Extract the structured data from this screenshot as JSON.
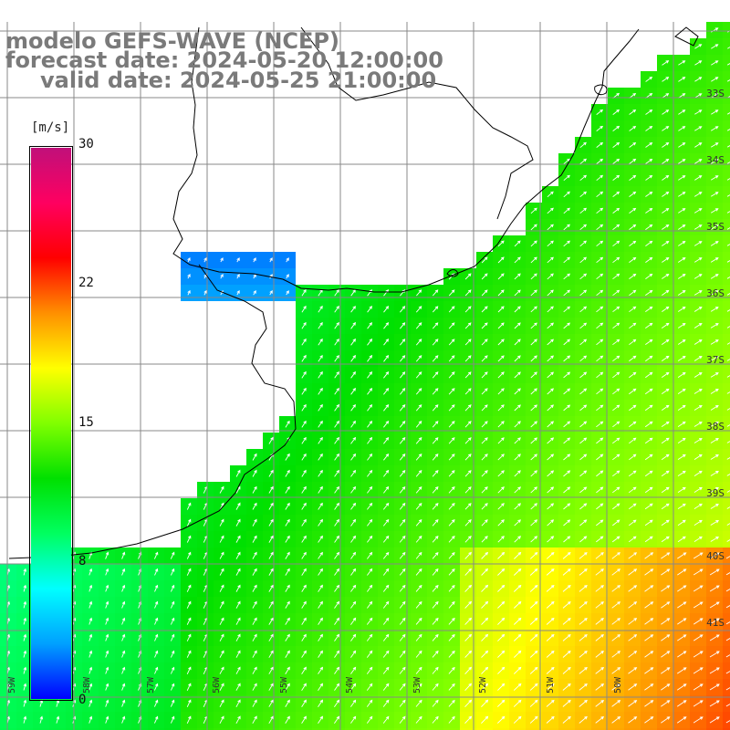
{
  "title": {
    "model": "modelo GEFS-WAVE (NCEP)",
    "forecast": "forecast date: 2024-05-20 12:00:00",
    "valid": "valid date: 2024-05-25 21:00:00"
  },
  "colorbar": {
    "unit": "[m/s]",
    "ticks": [
      {
        "label": "30",
        "value": 30
      },
      {
        "label": "22",
        "value": 22
      },
      {
        "label": "15",
        "value": 15
      },
      {
        "label": "8",
        "value": 8
      },
      {
        "label": "0",
        "value": 0
      }
    ],
    "colors": [
      "#0000ff",
      "#00a0ff",
      "#00ffff",
      "#00ff60",
      "#00e000",
      "#80ff00",
      "#ffff00",
      "#ff9000",
      "#ff0000",
      "#ff0060",
      "#c0107a"
    ]
  },
  "latitude_labels": [
    "33S",
    "34S",
    "35S",
    "36S",
    "37S",
    "38S",
    "39S",
    "40S",
    "41S"
  ],
  "longitude_labels": [
    "59W",
    "58W",
    "57W",
    "56W",
    "55W",
    "54W",
    "53W",
    "52W",
    "51W",
    "50W"
  ],
  "colors": {
    "land": "#ffffff",
    "grid": "#888888",
    "coast": "#000000",
    "arrow": "#ffffff",
    "title": "#7a7a7a"
  }
}
